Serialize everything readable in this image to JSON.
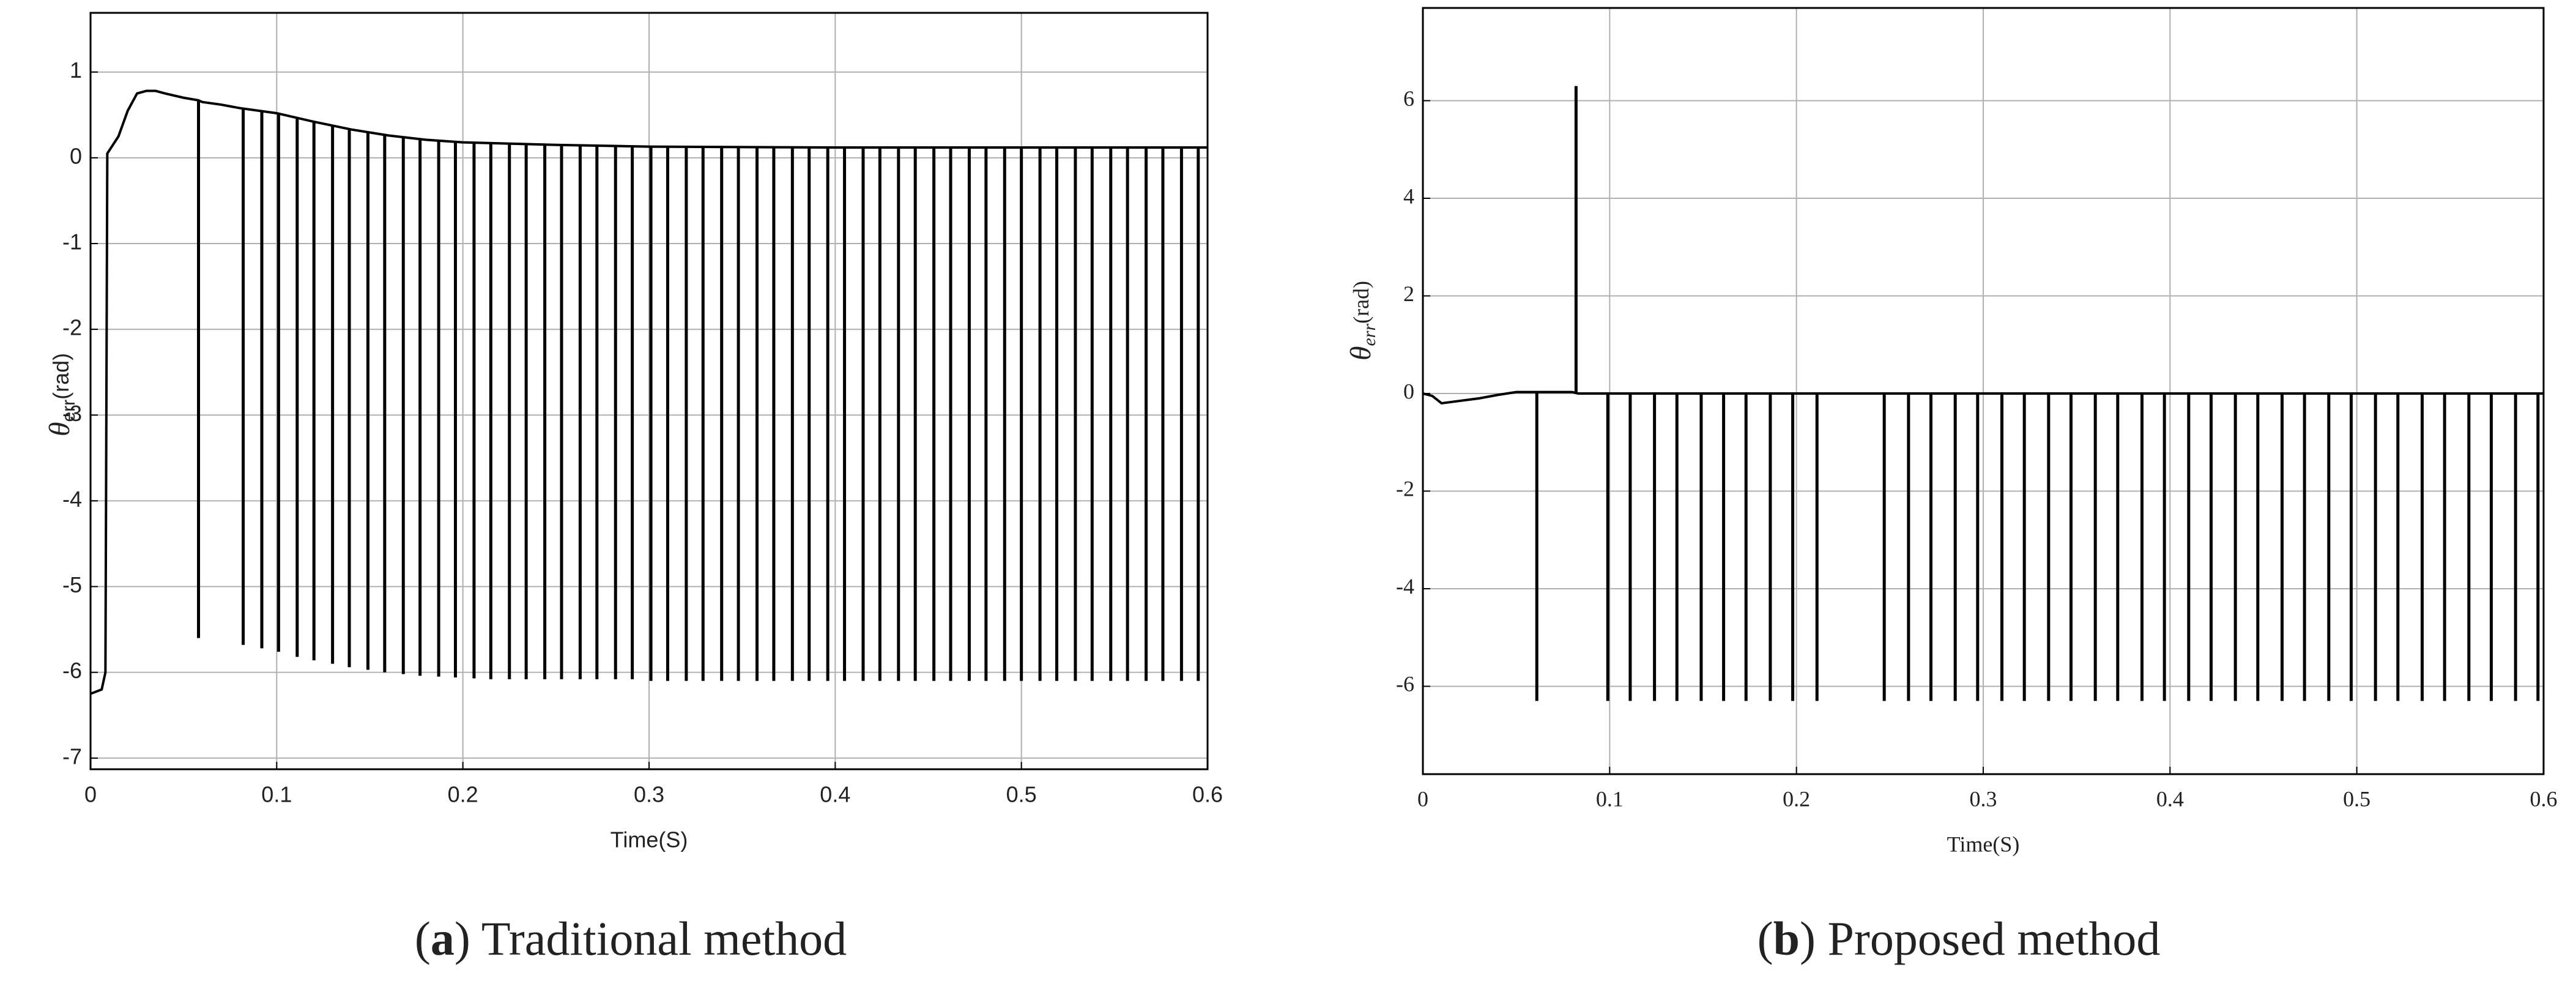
{
  "chart_data": [
    {
      "type": "line",
      "color": "#000000",
      "grid": true,
      "ylabel_symbol": "θ",
      "ylabel_subscript": "err",
      "ylabel_unit": "(rad)",
      "xlabel": "Time(S)",
      "caption_parts": [
        "(",
        "a",
        ") Traditional method"
      ],
      "xlim": [
        0,
        0.6
      ],
      "ylim": [
        -7.13,
        1.69
      ],
      "xticks": [
        0,
        0.1,
        0.2,
        0.3,
        0.4,
        0.5,
        0.6
      ],
      "yticks": [
        1,
        0,
        -1,
        -2,
        -3,
        -4,
        -5,
        -6,
        -7
      ],
      "x": [
        0,
        0.006,
        0.008,
        0.009,
        0.015,
        0.02,
        0.025,
        0.03,
        0.035,
        0.04,
        0.05,
        0.058,
        0.06,
        0.07,
        0.08,
        0.1,
        0.12,
        0.14,
        0.16,
        0.18,
        0.2,
        0.25,
        0.3,
        0.4,
        0.5,
        0.6
      ],
      "values": [
        -6.25,
        -6.2,
        -6.0,
        0.05,
        0.25,
        0.55,
        0.75,
        0.78,
        0.78,
        0.75,
        0.7,
        0.67,
        0.65,
        0.62,
        0.58,
        0.52,
        0.42,
        0.33,
        0.26,
        0.21,
        0.18,
        0.15,
        0.13,
        0.12,
        0.12,
        0.12
      ],
      "spike_x": [
        0.058,
        0.082,
        0.092,
        0.101,
        0.111,
        0.12,
        0.13,
        0.139,
        0.149,
        0.158,
        0.168,
        0.177,
        0.187,
        0.196,
        0.206,
        0.215,
        0.225,
        0.234,
        0.244,
        0.253,
        0.263,
        0.272,
        0.282,
        0.291,
        0.301,
        0.31,
        0.32,
        0.329,
        0.339,
        0.348,
        0.358,
        0.367,
        0.377,
        0.386,
        0.396,
        0.405,
        0.415,
        0.424,
        0.434,
        0.443,
        0.453,
        0.462,
        0.472,
        0.481,
        0.491,
        0.5,
        0.51,
        0.519,
        0.529,
        0.538,
        0.548,
        0.557,
        0.567,
        0.576,
        0.586,
        0.595
      ],
      "spike_values": [
        -5.6,
        -5.68,
        -5.72,
        -5.76,
        -5.82,
        -5.86,
        -5.9,
        -5.94,
        -5.97,
        -6.0,
        -6.02,
        -6.04,
        -6.05,
        -6.06,
        -6.07,
        -6.08,
        -6.08,
        -6.08,
        -6.08,
        -6.08,
        -6.08,
        -6.08,
        -6.08,
        -6.08,
        -6.1,
        -6.1,
        -6.1,
        -6.1,
        -6.1,
        -6.1,
        -6.1,
        -6.1,
        -6.1,
        -6.1,
        -6.1,
        -6.1,
        -6.1,
        -6.1,
        -6.1,
        -6.1,
        -6.1,
        -6.1,
        -6.1,
        -6.1,
        -6.1,
        -6.1,
        -6.1,
        -6.1,
        -6.1,
        -6.1,
        -6.1,
        -6.1,
        -6.1,
        -6.1,
        -6.1,
        -6.1
      ]
    },
    {
      "type": "line",
      "color": "#000000",
      "grid": true,
      "ylabel_symbol": "θ",
      "ylabel_subscript": "err",
      "ylabel_unit": "(rad)",
      "xlabel": "Time(S)",
      "caption_parts": [
        "(",
        "b",
        ") Proposed method"
      ],
      "xlim": [
        0,
        0.6
      ],
      "ylim": [
        -7.8,
        7.9
      ],
      "xticks": [
        0,
        0.1,
        0.2,
        0.3,
        0.4,
        0.5,
        0.6
      ],
      "yticks": [
        6,
        4,
        2,
        0,
        -2,
        -4,
        -6
      ],
      "x": [
        0,
        0.005,
        0.01,
        0.02,
        0.03,
        0.04,
        0.045,
        0.05,
        0.08,
        0.083,
        0.6
      ],
      "values": [
        0,
        -0.05,
        -0.2,
        -0.15,
        -0.1,
        -0.03,
        0,
        0.03,
        0.03,
        0,
        0
      ],
      "spike_x": [
        0.061,
        0.082,
        0.099,
        0.111,
        0.124,
        0.136,
        0.149,
        0.161,
        0.173,
        0.186,
        0.198,
        0.211,
        0.247,
        0.26,
        0.272,
        0.285,
        0.297,
        0.31,
        0.322,
        0.335,
        0.347,
        0.36,
        0.372,
        0.385,
        0.397,
        0.41,
        0.422,
        0.435,
        0.447,
        0.46,
        0.472,
        0.485,
        0.497,
        0.51,
        0.522,
        0.535,
        0.547,
        0.56,
        0.572,
        0.585,
        0.597
      ],
      "spike_values": [
        -6.3,
        6.3,
        -6.3,
        -6.3,
        -6.3,
        -6.3,
        -6.3,
        -6.3,
        -6.3,
        -6.3,
        -6.3,
        -6.3,
        -6.3,
        -6.3,
        -6.3,
        -6.3,
        -6.3,
        -6.3,
        -6.3,
        -6.3,
        -6.3,
        -6.3,
        -6.3,
        -6.3,
        -6.3,
        -6.3,
        -6.3,
        -6.3,
        -6.3,
        -6.3,
        -6.3,
        -6.3,
        -6.3,
        -6.3,
        -6.3,
        -6.3,
        -6.3,
        -6.3,
        -6.3,
        -6.3,
        -6.3
      ]
    }
  ]
}
